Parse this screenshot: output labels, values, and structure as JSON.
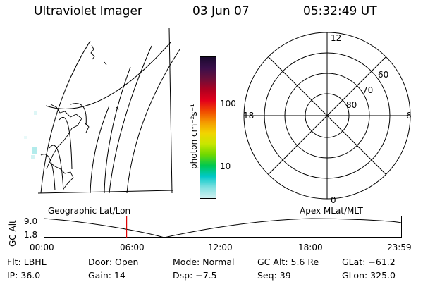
{
  "header": {
    "title": "Ultraviolet Imager",
    "date": "03 Jun 07",
    "time": "05:32:49 UT"
  },
  "colorbar": {
    "unit_label": "photon cm⁻²s⁻¹",
    "tick_labels": [
      "100",
      "10"
    ],
    "colors_top_to_bottom": [
      "#1a0a2e",
      "#3a0f4a",
      "#6a0f3a",
      "#b00020",
      "#e3001b",
      "#f04a00",
      "#f59a00",
      "#f2d400",
      "#c8e600",
      "#6fd800",
      "#00c850",
      "#00c8c8",
      "#7fe0e0",
      "#d0f0f0"
    ]
  },
  "map_left": {
    "caption": "Geographic Lat/Lon"
  },
  "polar_plot": {
    "caption": "Apex MLat/MLT",
    "mlt_labels": [
      "12",
      "18",
      "6",
      "0"
    ],
    "mlat_labels": [
      "60",
      "70",
      "80"
    ]
  },
  "altitude_plot": {
    "axis_label": "GC Alt",
    "tick_high": "9.0",
    "tick_low": "1.8",
    "time_labels": [
      "00:00",
      "06:00",
      "12:00",
      "18:00",
      "23:59"
    ],
    "current_time_fraction": 0.231,
    "colors": {
      "marker": "#dd0000"
    }
  },
  "info": {
    "filter": "Flt: LBHL",
    "door": "Door: Open",
    "mode": "Mode: Normal",
    "gc_alt": "GC Alt: 5.6 Re",
    "glat": "GLat: −61.2",
    "ip": "IP: 36.0",
    "gain": "Gain: 14",
    "dsp": "Dsp:   −7.5",
    "seq": "Seq: 39",
    "glon": "GLon: 325.0"
  }
}
